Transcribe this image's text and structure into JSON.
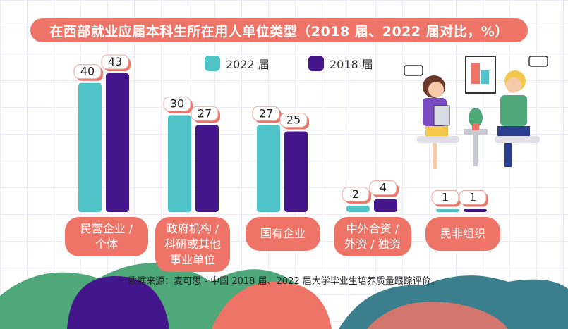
{
  "title": "在西部就业应届本科生所在用人单位类型（2018 届、2022 届对比，%）",
  "source": "数据来源：麦可思 - 中国 2018 届、2022 届大学毕业生培养质量跟踪评价。",
  "colors": {
    "series_2022": "#4fc3c7",
    "series_2018": "#44168c",
    "accent": "#ef7468"
  },
  "chart_data": {
    "type": "bar",
    "title": "在西部就业应届本科生所在用人单位类型（2018 届、2022 届对比，%）",
    "categories": [
      "民营企业 / 个体",
      "政府机构 / 科研或其他事业单位",
      "国有企业",
      "中外合资 / 外资 / 独资",
      "民非组织"
    ],
    "category_labels": [
      "民营企业 /\n个体",
      "政府机构 /\n科研或其他\n事业单位",
      "国有企业",
      "中外合资 /\n外资 / 独资",
      "民非组织"
    ],
    "series": [
      {
        "name": "2022 届",
        "values": [
          40,
          30,
          27,
          2,
          1
        ]
      },
      {
        "name": "2018 届",
        "values": [
          43,
          27,
          25,
          4,
          1
        ]
      }
    ],
    "ylim": [
      0,
      43
    ],
    "legend": "top"
  }
}
